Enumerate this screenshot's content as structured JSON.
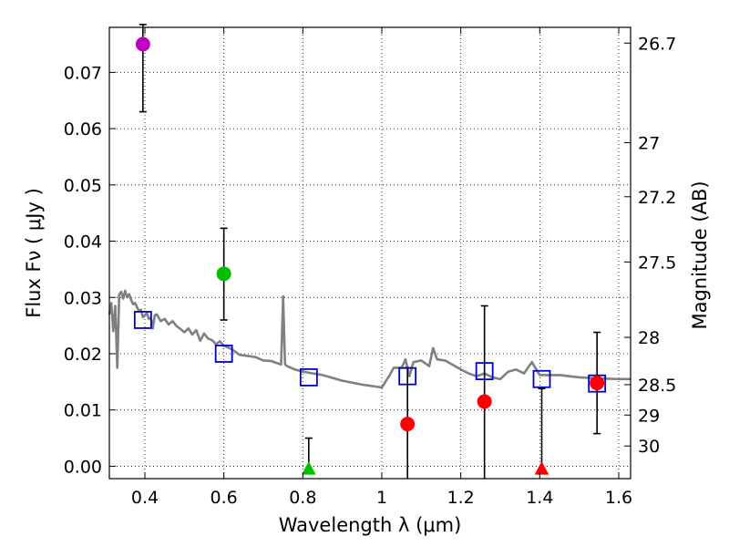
{
  "chart_data": {
    "type": "scatter",
    "xlabel": "Wavelength  λ (μm)",
    "ylabel": "Flux  Fν  ( μJy )",
    "y2label": "Magnitude (AB)",
    "xlim": [
      0.31,
      1.63
    ],
    "ylim": [
      -0.0022,
      0.078
    ],
    "grid": true,
    "x_ticks": [
      0.4,
      0.6,
      0.8,
      1.0,
      1.2,
      1.4,
      1.6
    ],
    "x_tick_labels": [
      "0.4",
      "0.6",
      "0.8",
      "1",
      "1.2",
      "1.4",
      "1.6"
    ],
    "y_ticks": [
      0.0,
      0.01,
      0.02,
      0.03,
      0.04,
      0.05,
      0.06,
      0.07
    ],
    "y_tick_labels": [
      "0.00",
      "0.01",
      "0.02",
      "0.03",
      "0.04",
      "0.05",
      "0.06",
      "0.07"
    ],
    "mag_ticks": [
      {
        "label": "26.7",
        "flux": 0.0752
      },
      {
        "label": "27",
        "flux": 0.0575
      },
      {
        "label": "27.2",
        "flux": 0.0479
      },
      {
        "label": "27.5",
        "flux": 0.0363
      },
      {
        "label": "28",
        "flux": 0.0229
      },
      {
        "label": "28.5",
        "flux": 0.0145
      },
      {
        "label": "29",
        "flux": 0.0091
      },
      {
        "label": "30",
        "flux": 0.0036
      }
    ],
    "colors": {
      "spectrum": "#808080",
      "model_box": "#0000cc",
      "purple": "#bf00bf",
      "green": "#00bf00",
      "red": "#ff0000",
      "errorbar": "#000000",
      "grid": "#000000"
    },
    "model_spectrum": {
      "x": [
        0.31,
        0.315,
        0.32,
        0.325,
        0.33,
        0.335,
        0.34,
        0.345,
        0.35,
        0.355,
        0.36,
        0.365,
        0.37,
        0.375,
        0.38,
        0.385,
        0.39,
        0.395,
        0.4,
        0.405,
        0.41,
        0.415,
        0.42,
        0.425,
        0.43,
        0.44,
        0.45,
        0.46,
        0.47,
        0.48,
        0.49,
        0.5,
        0.51,
        0.52,
        0.53,
        0.54,
        0.55,
        0.56,
        0.57,
        0.58,
        0.59,
        0.6,
        0.62,
        0.64,
        0.66,
        0.68,
        0.7,
        0.72,
        0.74,
        0.745,
        0.75,
        0.755,
        0.76,
        0.78,
        0.8,
        0.85,
        0.9,
        0.95,
        1.0,
        1.02,
        1.03,
        1.05,
        1.06,
        1.07,
        1.08,
        1.1,
        1.12,
        1.13,
        1.14,
        1.16,
        1.18,
        1.2,
        1.22,
        1.24,
        1.26,
        1.28,
        1.3,
        1.32,
        1.34,
        1.36,
        1.38,
        1.4,
        1.45,
        1.5,
        1.55,
        1.6,
        1.63
      ],
      "y": [
        0.027,
        0.029,
        0.024,
        0.0285,
        0.0175,
        0.0305,
        0.031,
        0.0298,
        0.0312,
        0.03,
        0.0306,
        0.0296,
        0.0288,
        0.029,
        0.0283,
        0.0276,
        0.0278,
        0.0265,
        0.0268,
        0.0272,
        0.0262,
        0.0264,
        0.0245,
        0.0268,
        0.027,
        0.0258,
        0.0262,
        0.0252,
        0.0258,
        0.0249,
        0.0244,
        0.0238,
        0.0245,
        0.0234,
        0.0242,
        0.0223,
        0.0236,
        0.0227,
        0.0224,
        0.0217,
        0.0222,
        0.0214,
        0.0208,
        0.0198,
        0.0196,
        0.0194,
        0.0188,
        0.0187,
        0.0182,
        0.0181,
        0.0302,
        0.0181,
        0.0178,
        0.0172,
        0.0168,
        0.0162,
        0.0152,
        0.0145,
        0.014,
        0.0162,
        0.0175,
        0.0175,
        0.019,
        0.016,
        0.0185,
        0.0188,
        0.0178,
        0.021,
        0.019,
        0.0188,
        0.018,
        0.0172,
        0.0165,
        0.016,
        0.0165,
        0.0158,
        0.0155,
        0.0168,
        0.0172,
        0.0165,
        0.0185,
        0.0162,
        0.0162,
        0.0158,
        0.0156,
        0.0155,
        0.0155
      ]
    },
    "model_bands": [
      {
        "x": 0.395,
        "y": 0.026
      },
      {
        "x": 0.6,
        "y": 0.02
      },
      {
        "x": 0.815,
        "y": 0.0158
      },
      {
        "x": 1.065,
        "y": 0.016
      },
      {
        "x": 1.26,
        "y": 0.0169
      },
      {
        "x": 1.405,
        "y": 0.0155
      },
      {
        "x": 1.545,
        "y": 0.0147
      }
    ],
    "observed": [
      {
        "x": 0.395,
        "y": 0.075,
        "yerr_low": 0.063,
        "yerr_high": 0.0785,
        "color": "purple",
        "marker": "circle"
      },
      {
        "x": 0.6,
        "y": 0.0342,
        "yerr_low": 0.026,
        "yerr_high": 0.0423,
        "color": "green",
        "marker": "circle"
      },
      {
        "x": 0.815,
        "y": -0.0006,
        "yerr_low": -0.0006,
        "yerr_high": 0.005,
        "color": "green",
        "marker": "triangle"
      },
      {
        "x": 1.065,
        "y": 0.0075,
        "yerr_low": -0.0022,
        "yerr_high": 0.0175,
        "color": "red",
        "marker": "circle"
      },
      {
        "x": 1.26,
        "y": 0.0115,
        "yerr_low": -0.0022,
        "yerr_high": 0.0285,
        "color": "red",
        "marker": "circle"
      },
      {
        "x": 1.405,
        "y": -0.0006,
        "yerr_low": -0.0006,
        "yerr_high": 0.0138,
        "color": "red",
        "marker": "triangle"
      },
      {
        "x": 1.545,
        "y": 0.0148,
        "yerr_low": 0.0058,
        "yerr_high": 0.0238,
        "color": "red",
        "marker": "circle"
      }
    ]
  }
}
